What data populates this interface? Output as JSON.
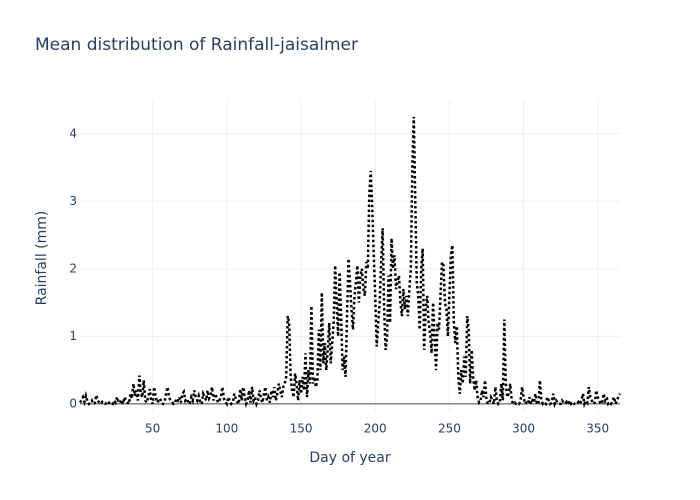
{
  "chart_data": {
    "type": "line",
    "title": "Mean distribution of Rainfall-jaisalmer",
    "x_label": "Day of year",
    "y_label": "Rainfall (mm)",
    "color": "#000000",
    "line_dash": "dot",
    "grid": true,
    "xlim": [
      1,
      365
    ],
    "ylim": [
      -0.12,
      4.5
    ],
    "xticks": [
      50,
      100,
      150,
      200,
      250,
      300,
      350
    ],
    "yticks": [
      0,
      1,
      2,
      3,
      4
    ],
    "x": [
      1,
      2,
      3,
      4,
      5,
      6,
      7,
      8,
      9,
      10,
      11,
      12,
      13,
      14,
      15,
      16,
      17,
      18,
      19,
      20,
      21,
      22,
      23,
      24,
      25,
      26,
      27,
      28,
      29,
      30,
      31,
      32,
      33,
      34,
      35,
      36,
      37,
      38,
      39,
      40,
      41,
      42,
      43,
      44,
      45,
      46,
      47,
      48,
      49,
      50,
      51,
      52,
      53,
      54,
      55,
      56,
      57,
      58,
      59,
      60,
      61,
      62,
      63,
      64,
      65,
      66,
      67,
      68,
      69,
      70,
      71,
      72,
      73,
      74,
      75,
      76,
      77,
      78,
      79,
      80,
      81,
      82,
      83,
      84,
      85,
      86,
      87,
      88,
      89,
      90,
      91,
      92,
      93,
      94,
      95,
      96,
      97,
      98,
      99,
      100,
      101,
      102,
      103,
      104,
      105,
      106,
      107,
      108,
      109,
      110,
      111,
      112,
      113,
      114,
      115,
      116,
      117,
      118,
      119,
      120,
      121,
      122,
      123,
      124,
      125,
      126,
      127,
      128,
      129,
      130,
      131,
      132,
      133,
      134,
      135,
      136,
      137,
      138,
      139,
      140,
      141,
      142,
      143,
      144,
      145,
      146,
      147,
      148,
      149,
      150,
      151,
      152,
      153,
      154,
      155,
      156,
      157,
      158,
      159,
      160,
      161,
      162,
      163,
      164,
      165,
      166,
      167,
      168,
      169,
      170,
      171,
      172,
      173,
      174,
      175,
      176,
      177,
      178,
      179,
      180,
      181,
      182,
      183,
      184,
      185,
      186,
      187,
      188,
      189,
      190,
      191,
      192,
      193,
      194,
      195,
      196,
      197,
      198,
      199,
      200,
      201,
      202,
      203,
      204,
      205,
      206,
      207,
      208,
      209,
      210,
      211,
      212,
      213,
      214,
      215,
      216,
      217,
      218,
      219,
      220,
      221,
      222,
      223,
      224,
      225,
      226,
      227,
      228,
      229,
      230,
      231,
      232,
      233,
      234,
      235,
      236,
      237,
      238,
      239,
      240,
      241,
      242,
      243,
      244,
      245,
      246,
      247,
      248,
      249,
      250,
      251,
      252,
      253,
      254,
      255,
      256,
      257,
      258,
      259,
      260,
      261,
      262,
      263,
      264,
      265,
      266,
      267,
      268,
      269,
      270,
      271,
      272,
      273,
      274,
      275,
      276,
      277,
      278,
      279,
      280,
      281,
      282,
      283,
      284,
      285,
      286,
      287,
      288,
      289,
      290,
      291,
      292,
      293,
      294,
      295,
      296,
      297,
      298,
      299,
      300,
      301,
      302,
      303,
      304,
      305,
      306,
      307,
      308,
      309,
      310,
      311,
      312,
      313,
      314,
      315,
      316,
      317,
      318,
      319,
      320,
      321,
      322,
      323,
      324,
      325,
      326,
      327,
      328,
      329,
      330,
      331,
      332,
      333,
      334,
      335,
      336,
      337,
      338,
      339,
      340,
      341,
      342,
      343,
      344,
      345,
      346,
      347,
      348,
      349,
      350,
      351,
      352,
      353,
      354,
      355,
      356,
      357,
      358,
      359,
      360,
      361,
      362,
      363,
      364,
      365
    ],
    "values": [
      0.02,
      0.05,
      0.1,
      0.03,
      0.12,
      0.04,
      0.0,
      0.02,
      0.05,
      0.0,
      0.01,
      0.13,
      0.05,
      0.02,
      0.0,
      0.03,
      0.01,
      0.0,
      0.02,
      0.04,
      0.0,
      0.01,
      0.0,
      0.05,
      0.02,
      0.1,
      0.03,
      0.01,
      0.06,
      0.0,
      0.1,
      0.05,
      0.02,
      0.0,
      0.15,
      0.08,
      0.3,
      0.12,
      0.2,
      0.05,
      0.42,
      0.15,
      0.1,
      0.35,
      0.05,
      0.02,
      0.1,
      0.22,
      0.05,
      0.0,
      0.25,
      0.1,
      0.02,
      0.05,
      0.08,
      0.01,
      0.0,
      0.03,
      0.15,
      0.25,
      0.1,
      0.05,
      0.03,
      0.0,
      0.02,
      0.08,
      0.05,
      0.1,
      0.02,
      0.15,
      0.18,
      0.05,
      0.08,
      0.02,
      0.0,
      0.1,
      0.05,
      0.2,
      0.1,
      0.05,
      0.12,
      0.03,
      0.0,
      0.15,
      0.1,
      0.05,
      0.2,
      0.08,
      0.12,
      0.25,
      0.05,
      0.15,
      0.1,
      0.02,
      0.05,
      0.1,
      0.25,
      0.08,
      0.03,
      0.0,
      0.1,
      0.05,
      0.0,
      0.02,
      0.15,
      0.08,
      0.03,
      0.0,
      0.22,
      0.05,
      0.25,
      0.1,
      0.0,
      0.05,
      0.2,
      0.02,
      0.25,
      0.05,
      0.1,
      0.0,
      0.05,
      0.2,
      0.08,
      0.02,
      0.15,
      0.25,
      0.05,
      0.1,
      0.02,
      0.2,
      0.1,
      0.25,
      0.05,
      0.15,
      0.3,
      0.2,
      0.1,
      0.25,
      0.3,
      0.4,
      1.3,
      1.2,
      0.4,
      0.2,
      0.1,
      0.45,
      0.3,
      0.05,
      0.35,
      0.15,
      0.4,
      0.2,
      0.75,
      0.1,
      0.5,
      0.3,
      1.45,
      0.3,
      0.4,
      0.25,
      0.35,
      1.1,
      0.5,
      1.65,
      0.6,
      0.9,
      0.5,
      0.8,
      1.2,
      0.6,
      0.9,
      1.2,
      2.05,
      1.5,
      1.0,
      1.95,
      1.3,
      0.5,
      0.7,
      0.4,
      1.3,
      2.15,
      1.8,
      1.4,
      1.1,
      1.6,
      1.8,
      2.05,
      1.5,
      1.9,
      2.0,
      1.7,
      1.6,
      2.1,
      2.0,
      3.1,
      3.45,
      2.9,
      2.2,
      1.6,
      0.85,
      1.2,
      1.5,
      2.1,
      2.6,
      1.4,
      0.8,
      1.0,
      1.9,
      1.2,
      2.45,
      2.0,
      2.2,
      1.7,
      1.8,
      1.9,
      1.5,
      1.3,
      1.7,
      1.4,
      1.6,
      1.3,
      1.7,
      2.0,
      3.5,
      4.25,
      3.0,
      1.8,
      1.6,
      1.1,
      2.0,
      2.3,
      0.8,
      1.4,
      1.6,
      1.2,
      1.05,
      0.75,
      1.5,
      1.0,
      0.5,
      1.2,
      1.1,
      1.6,
      2.1,
      2.05,
      1.5,
      1.4,
      1.0,
      1.6,
      2.2,
      2.35,
      1.2,
      0.9,
      1.15,
      0.4,
      0.15,
      0.5,
      0.3,
      0.7,
      0.4,
      1.3,
      1.1,
      0.3,
      0.8,
      0.4,
      0.2,
      0.35,
      0.1,
      0.02,
      0.05,
      0.2,
      0.1,
      0.35,
      0.05,
      0.0,
      0.02,
      0.1,
      0.05,
      0.0,
      0.25,
      0.05,
      0.0,
      0.02,
      0.3,
      0.05,
      1.25,
      0.3,
      0.1,
      0.15,
      0.3,
      0.05,
      0.0,
      0.02,
      0.0,
      0.01,
      0.0,
      0.05,
      0.25,
      0.1,
      0.0,
      0.02,
      0.0,
      0.1,
      0.0,
      0.05,
      0.02,
      0.15,
      0.0,
      0.0,
      0.35,
      0.05,
      0.0,
      0.02,
      0.0,
      0.1,
      0.05,
      0.0,
      0.02,
      0.15,
      0.0,
      0.05,
      0.02,
      0.0,
      0.0,
      0.05,
      0.02,
      0.0,
      0.03,
      0.0,
      0.05,
      0.0,
      0.02,
      0.0,
      0.01,
      0.0,
      0.03,
      0.0,
      0.05,
      0.15,
      0.0,
      0.05,
      0.02,
      0.25,
      0.1,
      0.05,
      0.0,
      0.02,
      0.2,
      0.1,
      0.05,
      0.0,
      0.02,
      0.15,
      0.05,
      0.1,
      0.0,
      0.02,
      0.0,
      0.05,
      0.1,
      0.0,
      0.05,
      0.12,
      0.15
    ]
  }
}
